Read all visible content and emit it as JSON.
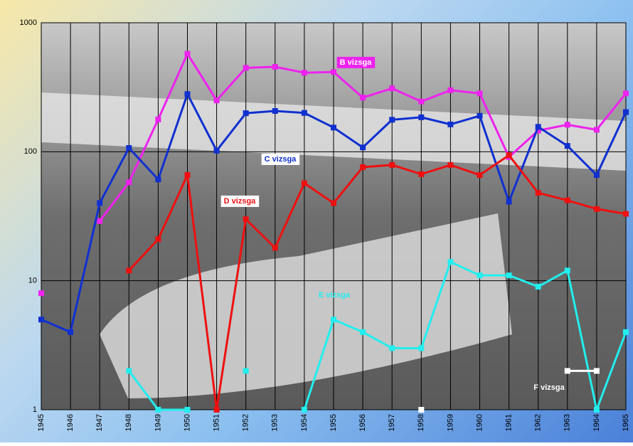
{
  "chart_data": {
    "type": "line",
    "categories": [
      "1945",
      "1946",
      "1947",
      "1948",
      "1949",
      "1950",
      "1951",
      "1952",
      "1953",
      "1954",
      "1955",
      "1956",
      "1957",
      "1958",
      "1959",
      "1960",
      "1961",
      "1962",
      "1963",
      "1964",
      "1965"
    ],
    "ylim": [
      1,
      1000
    ],
    "yticks": [
      1,
      10,
      100,
      1000
    ],
    "log_scale": true,
    "grid": true,
    "series": [
      {
        "name": "B vizsga",
        "color": "#ee22ee",
        "values": [
          8,
          null,
          29,
          58,
          178,
          575,
          250,
          447,
          455,
          410,
          415,
          263,
          310,
          245,
          300,
          283,
          91,
          146,
          162,
          148,
          283
        ]
      },
      {
        "name": "C vizsga",
        "color": "#1030d0",
        "values": [
          5,
          4,
          40,
          107,
          61,
          280,
          102,
          199,
          207,
          200,
          154,
          108,
          177,
          185,
          163,
          190,
          41,
          156,
          111,
          66,
          203
        ]
      },
      {
        "name": "D vizsga",
        "color": "#ee1010",
        "values": [
          null,
          null,
          null,
          12,
          21,
          66,
          1,
          30,
          18,
          57,
          40,
          76,
          79,
          67,
          79,
          66,
          94,
          48,
          42,
          36,
          33
        ]
      },
      {
        "name": "E vizsga",
        "color": "#22eeee",
        "values": [
          null,
          null,
          null,
          2,
          1,
          1,
          null,
          2,
          null,
          1,
          5,
          4,
          3,
          3,
          14,
          11,
          11,
          9,
          12,
          1,
          4
        ]
      },
      {
        "name": "F vizsga",
        "color": "#ffffff",
        "values": [
          null,
          null,
          null,
          null,
          null,
          null,
          null,
          null,
          null,
          null,
          null,
          null,
          null,
          1,
          null,
          null,
          null,
          null,
          2,
          2,
          null
        ]
      }
    ]
  }
}
